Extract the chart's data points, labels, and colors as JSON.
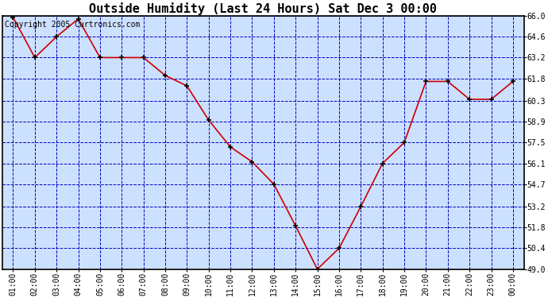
{
  "title": "Outside Humidity (Last 24 Hours) Sat Dec 3 00:00",
  "copyright": "Copyright 2005 Curtronics.com",
  "x_labels": [
    "01:00",
    "02:00",
    "03:00",
    "04:00",
    "05:00",
    "06:00",
    "07:00",
    "08:00",
    "09:00",
    "10:00",
    "11:00",
    "12:00",
    "13:00",
    "14:00",
    "15:00",
    "16:00",
    "17:00",
    "18:00",
    "19:00",
    "20:00",
    "21:00",
    "22:00",
    "23:00",
    "00:00"
  ],
  "x_values": [
    1,
    2,
    3,
    4,
    5,
    6,
    7,
    8,
    9,
    10,
    11,
    12,
    13,
    14,
    15,
    16,
    17,
    18,
    19,
    20,
    21,
    22,
    23,
    24
  ],
  "y_values": [
    65.9,
    63.2,
    64.6,
    65.8,
    63.2,
    63.2,
    63.2,
    62.0,
    61.3,
    59.0,
    57.2,
    56.2,
    54.7,
    51.9,
    49.0,
    50.4,
    53.2,
    56.1,
    57.5,
    61.6,
    61.6,
    60.4,
    60.4,
    61.6
  ],
  "ylim_min": 49.0,
  "ylim_max": 66.0,
  "yticks": [
    49.0,
    50.4,
    51.8,
    53.2,
    54.7,
    56.1,
    57.5,
    58.9,
    60.3,
    61.8,
    63.2,
    64.6,
    66.0
  ],
  "line_color": "#cc0000",
  "marker_color": "#000000",
  "outer_bg_color": "#ffffff",
  "plot_bg_color": "#cce0ff",
  "grid_color": "#0000bb",
  "border_color": "#000000",
  "title_fontsize": 11,
  "copyright_fontsize": 7,
  "tick_fontsize": 7,
  "ytick_fontsize": 7
}
